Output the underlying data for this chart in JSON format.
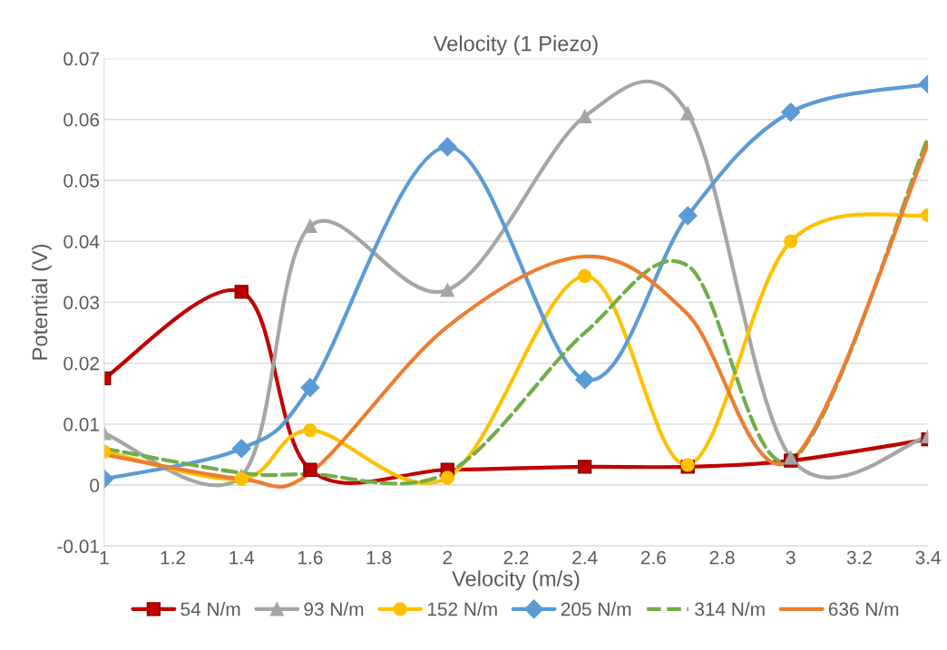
{
  "chart_data": {
    "type": "line",
    "title": "Velocity (1 Piezo)",
    "xlabel": "Velocity (m/s)",
    "ylabel": "Potential (V)",
    "x": [
      1,
      1.4,
      1.6,
      2,
      2.4,
      2.7,
      3,
      3.4
    ],
    "xlim": [
      1,
      3.4
    ],
    "xticks": [
      1,
      {
        "value": 1.2,
        "label": "1.2"
      },
      {
        "value": 1.4,
        "label": "1.4"
      },
      {
        "value": 1.6,
        "label": "1.6"
      },
      {
        "value": 1.8,
        "label": "1.8"
      },
      2,
      {
        "value": 2.2,
        "label": "2.2"
      },
      {
        "value": 2.4,
        "label": "2.4"
      },
      {
        "value": 2.6,
        "label": "2.6"
      },
      {
        "value": 2.8,
        "label": "2.8"
      },
      3,
      {
        "value": 3.2,
        "label": "3.2"
      },
      {
        "value": 3.4,
        "label": "3.4"
      }
    ],
    "ylim": [
      -0.01,
      0.07
    ],
    "yticks": [
      -0.01,
      0,
      0.01,
      0.02,
      0.03,
      0.04,
      0.05,
      0.06,
      0.07
    ],
    "grid": "y",
    "legend": "bottom",
    "series": [
      {
        "name": "54 N/m",
        "color": "#c00000",
        "marker": "square",
        "line_style": "solid",
        "values": [
          0.0175,
          0.0317,
          0.0025,
          0.0025,
          0.003,
          0.003,
          0.004,
          0.0075
        ]
      },
      {
        "name": "93 N/m",
        "color": "#a5a5a5",
        "marker": "triangle",
        "line_style": "solid",
        "values": [
          0.0085,
          0.0015,
          0.0425,
          0.032,
          0.0605,
          0.061,
          0.0045,
          0.008
        ]
      },
      {
        "name": "152 N/m",
        "color": "#ffc000",
        "marker": "circle",
        "line_style": "solid",
        "values": [
          0.0055,
          0.001,
          0.009,
          0.0012,
          0.0343,
          0.0033,
          0.04,
          0.0443
        ]
      },
      {
        "name": "205 N/m",
        "color": "#5b9bd5",
        "marker": "diamond",
        "line_style": "solid",
        "values": [
          0.001,
          0.006,
          0.016,
          0.0555,
          0.0173,
          0.0442,
          0.0612,
          0.0658
        ]
      },
      {
        "name": "314 N/m",
        "color": "#70ad47",
        "marker": "none",
        "line_style": "dashed",
        "values": [
          0.006,
          0.002,
          0.0018,
          0.002,
          0.025,
          0.036,
          0.004,
          0.057
        ]
      },
      {
        "name": "636 N/m",
        "color": "#ed7d31",
        "marker": "none",
        "line_style": "solid",
        "values": [
          0.005,
          0.001,
          0.002,
          0.026,
          0.0375,
          0.028,
          0.004,
          0.056
        ]
      }
    ]
  }
}
